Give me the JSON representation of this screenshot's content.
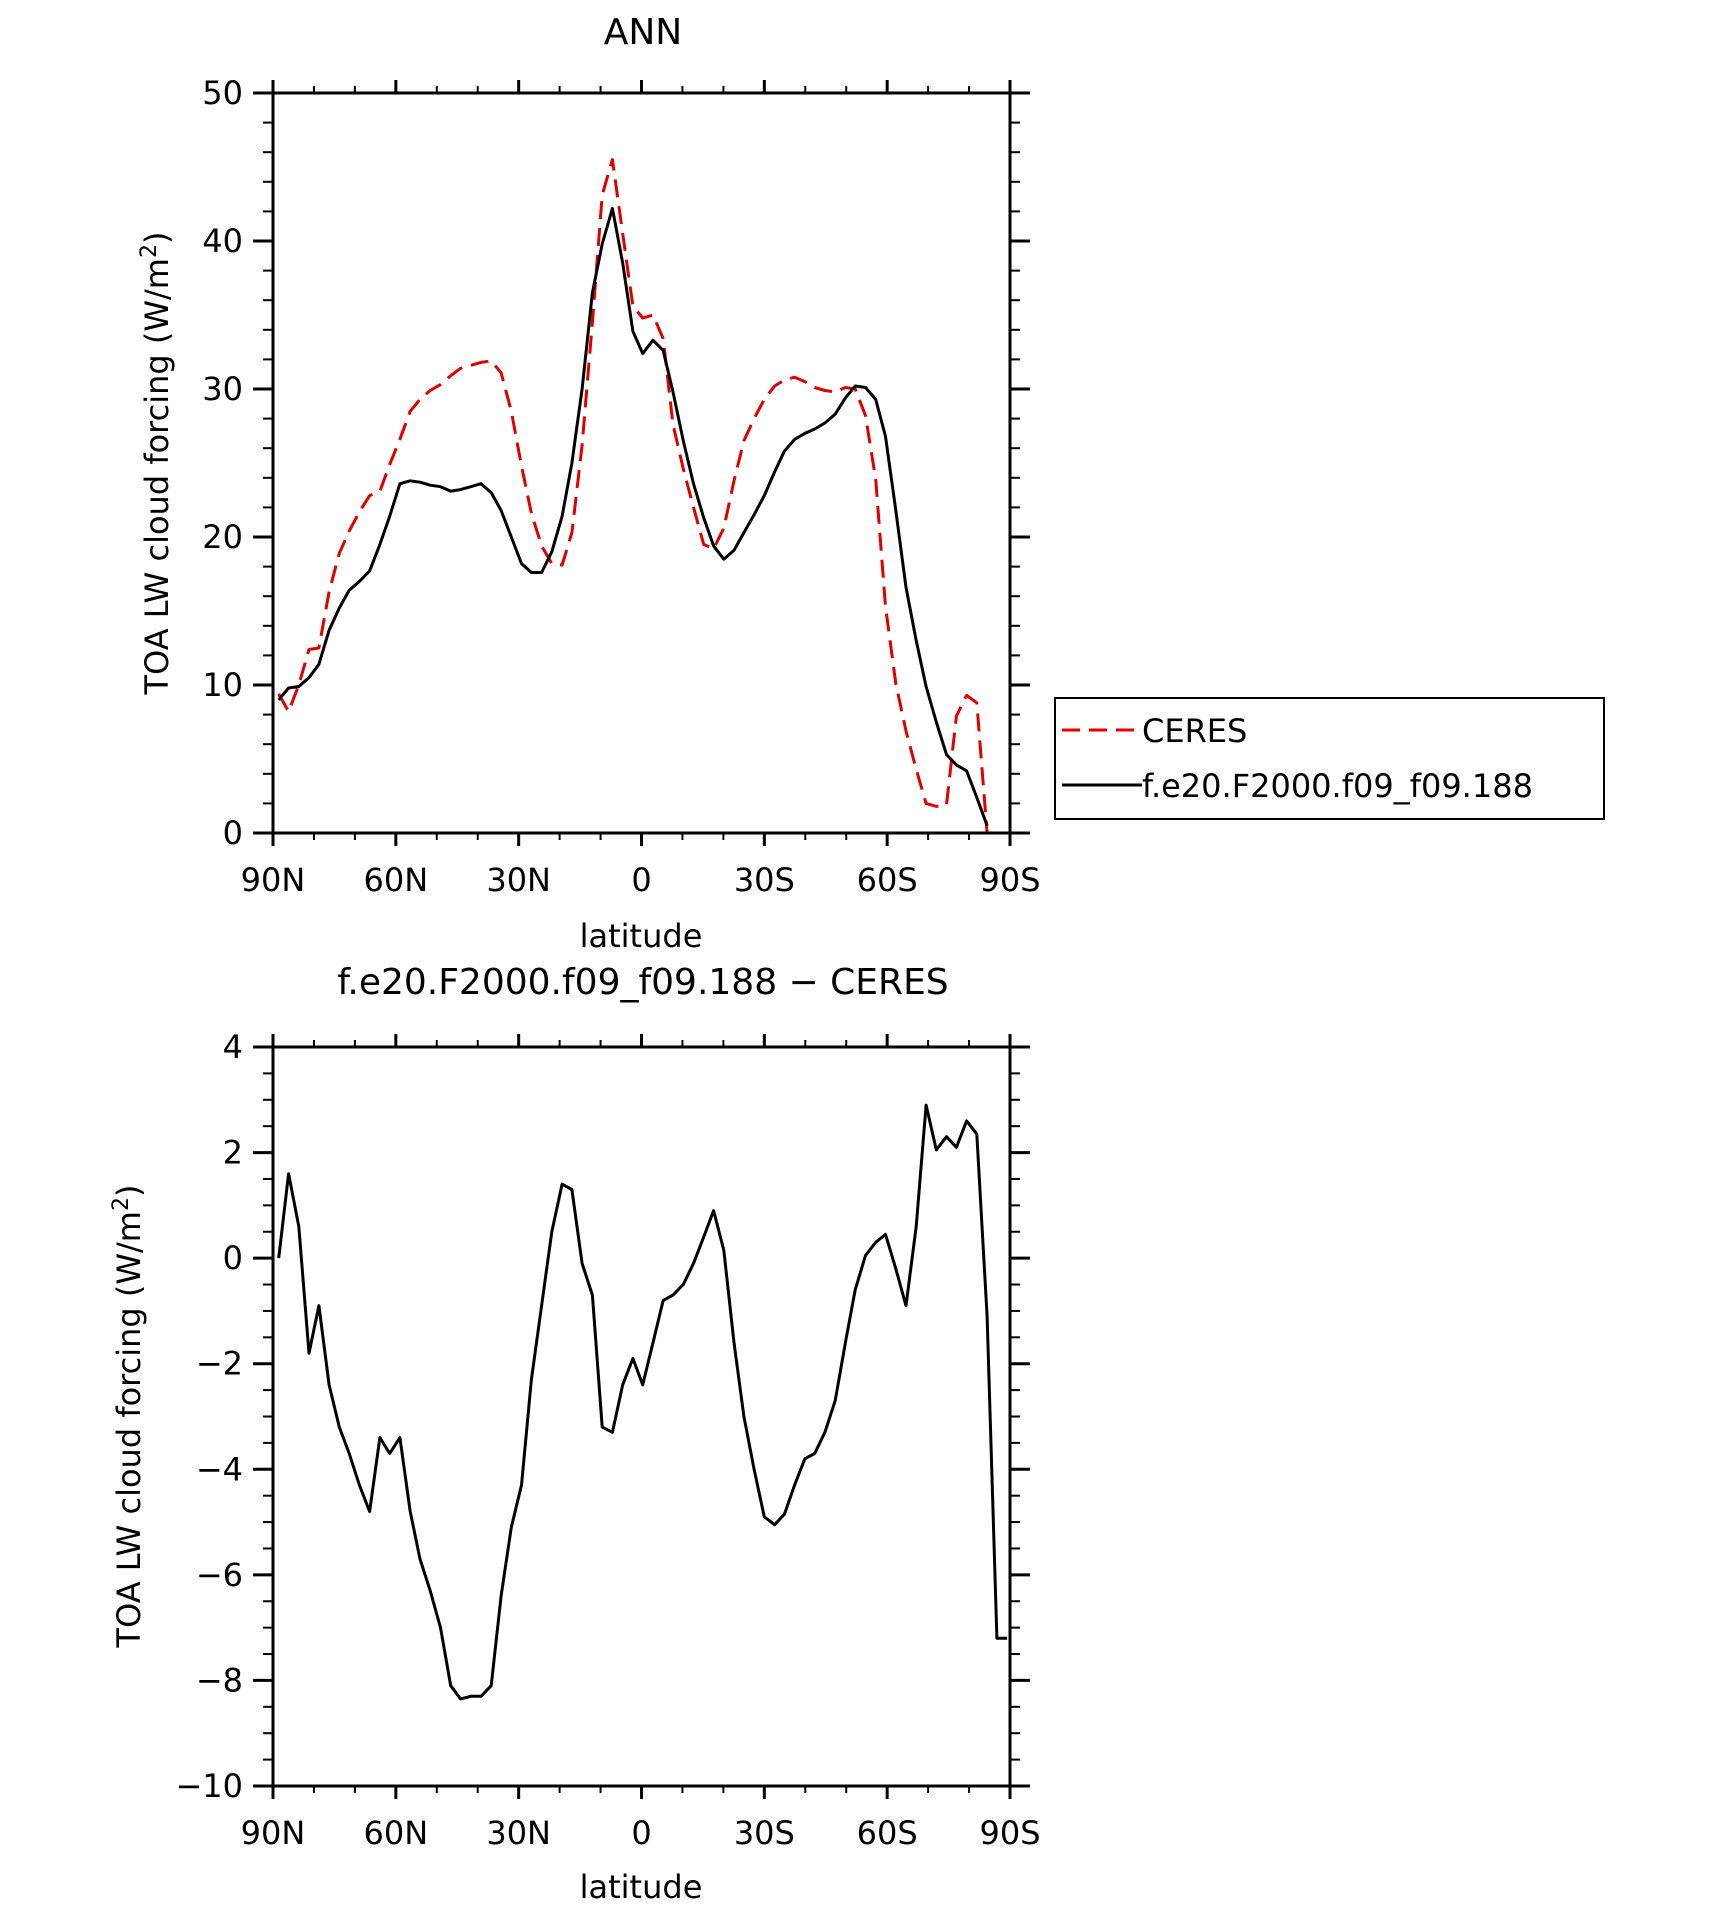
{
  "chart_data": [
    {
      "type": "line",
      "title": "ANN",
      "xlabel": "latitude",
      "ylabel": "TOA LW cloud forcing (W/m",
      "ylabel_superscript": "2",
      "ylabel_suffix": ")",
      "xlim": [
        90,
        -90
      ],
      "ylim": [
        0,
        50
      ],
      "x_tick_values": [
        90,
        60,
        30,
        0,
        -30,
        -60,
        -90
      ],
      "x_tick_labels": [
        "90N",
        "60N",
        "30N",
        "0",
        "30S",
        "60S",
        "90S"
      ],
      "y_tick_values": [
        0,
        10,
        20,
        30,
        40,
        50
      ],
      "y_tick_labels": [
        "0",
        "10",
        "20",
        "30",
        "40",
        "50"
      ],
      "legend_position": "right",
      "series": [
        {
          "name": "CERES",
          "color": "#e00000",
          "dash": "dashed",
          "x": [
            88.6,
            86.2,
            83.7,
            81.2,
            78.8,
            76.3,
            73.8,
            71.4,
            68.9,
            66.4,
            63.9,
            61.5,
            59.0,
            56.5,
            54.1,
            51.6,
            49.1,
            46.6,
            44.2,
            41.7,
            39.2,
            36.7,
            34.3,
            31.8,
            29.3,
            26.9,
            24.4,
            21.9,
            19.4,
            17.0,
            14.5,
            12.0,
            9.6,
            7.1,
            4.6,
            2.1,
            -0.3,
            -2.8,
            -5.3,
            -7.7,
            -10.2,
            -12.7,
            -15.2,
            -17.6,
            -20.1,
            -22.6,
            -25.0,
            -27.5,
            -30.0,
            -32.5,
            -34.9,
            -37.4,
            -39.9,
            -42.3,
            -44.8,
            -47.3,
            -49.8,
            -52.2,
            -54.7,
            -57.2,
            -59.6,
            -62.1,
            -64.6,
            -67.1,
            -69.5,
            -72.0,
            -74.5,
            -76.9,
            -79.4,
            -81.9,
            -84.4,
            -86.8,
            -89.3
          ],
          "y": [
            9.4,
            8.2,
            10.0,
            12.4,
            12.5,
            16.3,
            18.9,
            20.4,
            21.7,
            22.8,
            23.1,
            24.9,
            26.6,
            28.5,
            29.3,
            29.9,
            30.3,
            30.9,
            31.4,
            31.6,
            31.8,
            31.9,
            31.1,
            28.5,
            24.8,
            21.6,
            19.4,
            18.2,
            18.1,
            20.3,
            26.2,
            34.5,
            43.1,
            45.5,
            40.5,
            35.6,
            34.8,
            35.0,
            33.4,
            27.6,
            24.6,
            22.0,
            19.5,
            19.2,
            20.6,
            23.8,
            26.5,
            28.0,
            29.3,
            30.2,
            30.6,
            30.8,
            30.5,
            30.1,
            29.9,
            29.8,
            30.1,
            30.0,
            28.2,
            23.9,
            15.3,
            10.1,
            6.9,
            4.3,
            2.0,
            1.8,
            1.9,
            7.9,
            9.3,
            8.8,
            0.0,
            0.0,
            0.0
          ]
        },
        {
          "name": "f.e20.F2000.f09_f09.188",
          "color": "#000000",
          "dash": "solid",
          "x": [
            88.6,
            86.2,
            83.7,
            81.2,
            78.8,
            76.3,
            73.8,
            71.4,
            68.9,
            66.4,
            63.9,
            61.5,
            59.0,
            56.5,
            54.1,
            51.6,
            49.1,
            46.6,
            44.2,
            41.7,
            39.2,
            36.7,
            34.3,
            31.8,
            29.3,
            26.9,
            24.4,
            21.9,
            19.4,
            17.0,
            14.5,
            12.0,
            9.6,
            7.1,
            4.6,
            2.1,
            -0.3,
            -2.8,
            -5.3,
            -7.7,
            -10.2,
            -12.7,
            -15.2,
            -17.6,
            -20.1,
            -22.6,
            -25.0,
            -27.5,
            -30.0,
            -32.5,
            -34.9,
            -37.4,
            -39.9,
            -42.3,
            -44.8,
            -47.3,
            -49.8,
            -52.2,
            -54.7,
            -57.2,
            -59.6,
            -62.1,
            -64.6,
            -67.1,
            -69.5,
            -72.0,
            -74.5,
            -76.9,
            -79.4,
            -81.9,
            -84.4,
            -86.8,
            -89.3
          ],
          "y": [
            9.0,
            9.8,
            9.9,
            10.5,
            11.4,
            13.7,
            15.2,
            16.4,
            17.0,
            17.7,
            19.5,
            21.4,
            23.6,
            23.8,
            23.7,
            23.5,
            23.4,
            23.1,
            23.2,
            23.4,
            23.6,
            23.0,
            21.8,
            20.0,
            18.2,
            17.6,
            17.6,
            19.0,
            21.4,
            25.0,
            30.0,
            36.5,
            39.8,
            42.2,
            38.5,
            33.9,
            32.4,
            33.3,
            32.6,
            29.8,
            26.5,
            23.6,
            21.3,
            19.4,
            18.5,
            19.1,
            20.3,
            21.5,
            22.8,
            24.4,
            25.8,
            26.6,
            27.0,
            27.3,
            27.7,
            28.3,
            29.4,
            30.2,
            30.1,
            29.3,
            26.8,
            21.8,
            16.6,
            13.0,
            9.9,
            7.5,
            5.3,
            4.6,
            4.2,
            2.4,
            0.5,
            0.0,
            0.0
          ]
        }
      ]
    },
    {
      "type": "line",
      "title": "f.e20.F2000.f09_f09.188 − CERES",
      "xlabel": "latitude",
      "ylabel": "TOA LW cloud forcing (W/m",
      "ylabel_superscript": "2",
      "ylabel_suffix": ")",
      "xlim": [
        90,
        -90
      ],
      "ylim": [
        -10,
        4
      ],
      "x_tick_values": [
        90,
        60,
        30,
        0,
        -30,
        -60,
        -90
      ],
      "x_tick_labels": [
        "90N",
        "60N",
        "30N",
        "0",
        "30S",
        "60S",
        "90S"
      ],
      "y_tick_values": [
        -10,
        -8,
        -6,
        -4,
        -2,
        0,
        2,
        4
      ],
      "y_tick_labels": [
        "−10",
        "−8",
        "−6",
        "−4",
        "−2",
        "0",
        "2",
        "4"
      ],
      "series": [
        {
          "color": "#000000",
          "dash": "solid",
          "x": [
            88.6,
            86.2,
            83.7,
            81.2,
            78.8,
            76.3,
            73.8,
            71.4,
            68.9,
            66.4,
            63.9,
            61.5,
            59.0,
            56.5,
            54.1,
            51.6,
            49.1,
            46.6,
            44.2,
            41.7,
            39.2,
            36.7,
            34.3,
            31.8,
            29.3,
            26.9,
            24.4,
            21.9,
            19.4,
            17.0,
            14.5,
            12.0,
            9.6,
            7.1,
            4.6,
            2.1,
            -0.3,
            -2.8,
            -5.3,
            -7.7,
            -10.2,
            -12.7,
            -15.2,
            -17.6,
            -20.1,
            -22.6,
            -25.0,
            -27.5,
            -30.0,
            -32.5,
            -34.9,
            -37.4,
            -39.9,
            -42.3,
            -44.8,
            -47.3,
            -49.8,
            -52.2,
            -54.7,
            -57.2,
            -59.6,
            -62.1,
            -64.6,
            -67.1,
            -69.5,
            -72.0,
            -74.5,
            -76.9,
            -79.4,
            -81.9,
            -84.4,
            -86.8,
            -89.3
          ],
          "y": [
            0.0,
            1.6,
            0.6,
            -1.8,
            -0.9,
            -2.4,
            -3.2,
            -3.7,
            -4.3,
            -4.8,
            -3.4,
            -3.7,
            -3.4,
            -4.8,
            -5.7,
            -6.3,
            -7.0,
            -8.1,
            -8.35,
            -8.3,
            -8.3,
            -8.1,
            -6.4,
            -5.1,
            -4.3,
            -2.3,
            -0.9,
            0.5,
            1.4,
            1.3,
            -0.1,
            -0.7,
            -3.2,
            -3.3,
            -2.4,
            -1.9,
            -2.4,
            -1.6,
            -0.8,
            -0.7,
            -0.5,
            -0.1,
            0.4,
            0.9,
            0.15,
            -1.6,
            -3.0,
            -4.0,
            -4.9,
            -5.05,
            -4.85,
            -4.3,
            -3.8,
            -3.7,
            -3.3,
            -2.7,
            -1.6,
            -0.6,
            0.05,
            0.3,
            0.45,
            -0.2,
            -0.9,
            0.6,
            2.9,
            2.05,
            2.3,
            2.1,
            2.6,
            2.35,
            -1.1,
            -7.2,
            -7.2
          ]
        }
      ]
    }
  ]
}
